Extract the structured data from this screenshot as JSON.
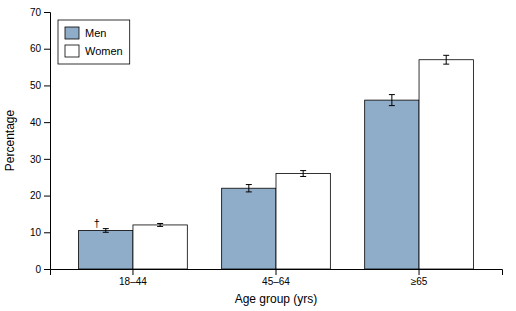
{
  "chart_data": {
    "type": "bar",
    "xlabel": "Age group (yrs)",
    "ylabel": "Percentage",
    "categories": [
      "18–44",
      "45–64",
      "≥65"
    ],
    "series": [
      {
        "name": "Men",
        "color": "#8fadc8",
        "values": [
          10.5,
          22.0,
          46.0
        ],
        "errors": [
          0.5,
          1.0,
          1.5
        ]
      },
      {
        "name": "Women",
        "color": "#ffffff",
        "values": [
          12.0,
          26.0,
          57.0
        ],
        "errors": [
          0.4,
          0.8,
          1.2
        ]
      }
    ],
    "ylim": [
      0,
      70
    ],
    "yticks": [
      0,
      10,
      20,
      30,
      40,
      50,
      60,
      70
    ],
    "grid": false,
    "legend": "upper left",
    "annotations": [
      {
        "text": "†",
        "category": "18–44",
        "series": "Men"
      }
    ]
  }
}
